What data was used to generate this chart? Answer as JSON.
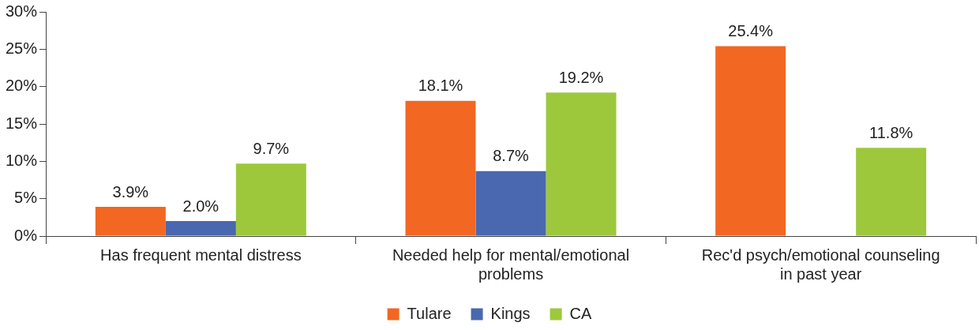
{
  "chart_data": {
    "type": "bar",
    "categories": [
      "Has frequent mental distress",
      "Needed help for mental/emotional problems",
      "Rec'd psych/emotional counseling in past year"
    ],
    "series": [
      {
        "name": "Tulare",
        "color": "#f26722",
        "values": [
          3.9,
          18.1,
          25.4
        ],
        "value_labels": [
          "3.9%",
          "18.1%",
          "25.4%"
        ]
      },
      {
        "name": "Kings",
        "color": "#4a68b0",
        "values": [
          2.0,
          8.7,
          null
        ],
        "value_labels": [
          "2.0%",
          "8.7%",
          null
        ]
      },
      {
        "name": "CA",
        "color": "#9dc83c",
        "values": [
          9.7,
          19.2,
          11.8
        ],
        "value_labels": [
          "9.7%",
          "19.2%",
          "11.8%"
        ]
      }
    ],
    "ylim": [
      0,
      30
    ],
    "yticks": [
      {
        "value": 0,
        "label": "0%"
      },
      {
        "value": 5,
        "label": "5%"
      },
      {
        "value": 10,
        "label": "10%"
      },
      {
        "value": 15,
        "label": "15%"
      },
      {
        "value": 20,
        "label": "20%"
      },
      {
        "value": 25,
        "label": "25%"
      },
      {
        "value": 30,
        "label": "30%"
      }
    ],
    "grid": false,
    "legend": "bottom"
  }
}
